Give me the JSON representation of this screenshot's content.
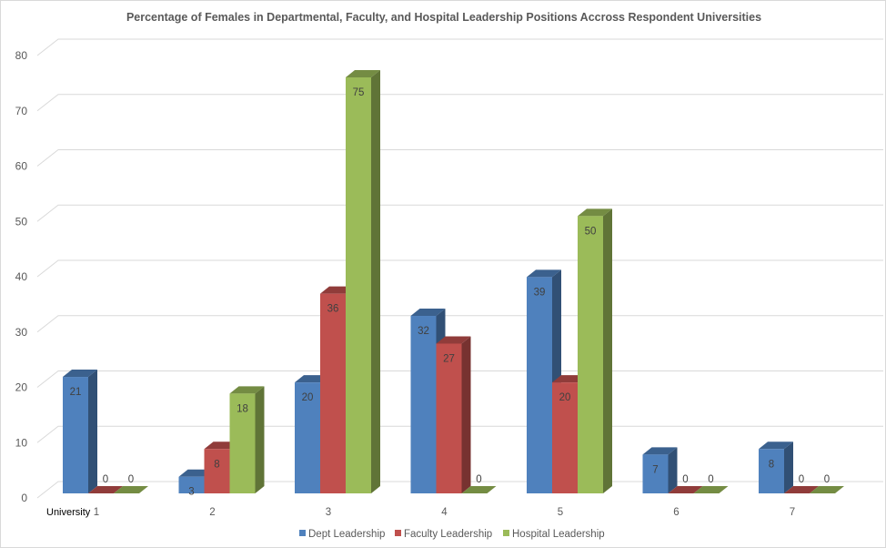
{
  "chart_data": {
    "type": "bar",
    "title": "Percentage of Females in Departmental, Faculty, and Hospital Leadership Positions Accross Respondent Universities",
    "xlabel": "University",
    "ylabel": "",
    "categories": [
      "1",
      "2",
      "3",
      "4",
      "5",
      "6",
      "7"
    ],
    "series": [
      {
        "name": "Dept Leadership",
        "values": [
          21,
          3,
          20,
          32,
          39,
          7,
          8
        ],
        "color": "#4f81bd"
      },
      {
        "name": "Faculty Leadership",
        "values": [
          0,
          8,
          36,
          27,
          20,
          0,
          0
        ],
        "color": "#c0504d"
      },
      {
        "name": "Hospital Leadership",
        "values": [
          0,
          18,
          75,
          0,
          50,
          0,
          0
        ],
        "color": "#9bbb59"
      }
    ],
    "ylim": [
      0,
      80
    ],
    "yticks": [
      0,
      10,
      20,
      30,
      40,
      50,
      60,
      70,
      80
    ],
    "grid": true,
    "three_d": true,
    "legend": "bottom"
  }
}
